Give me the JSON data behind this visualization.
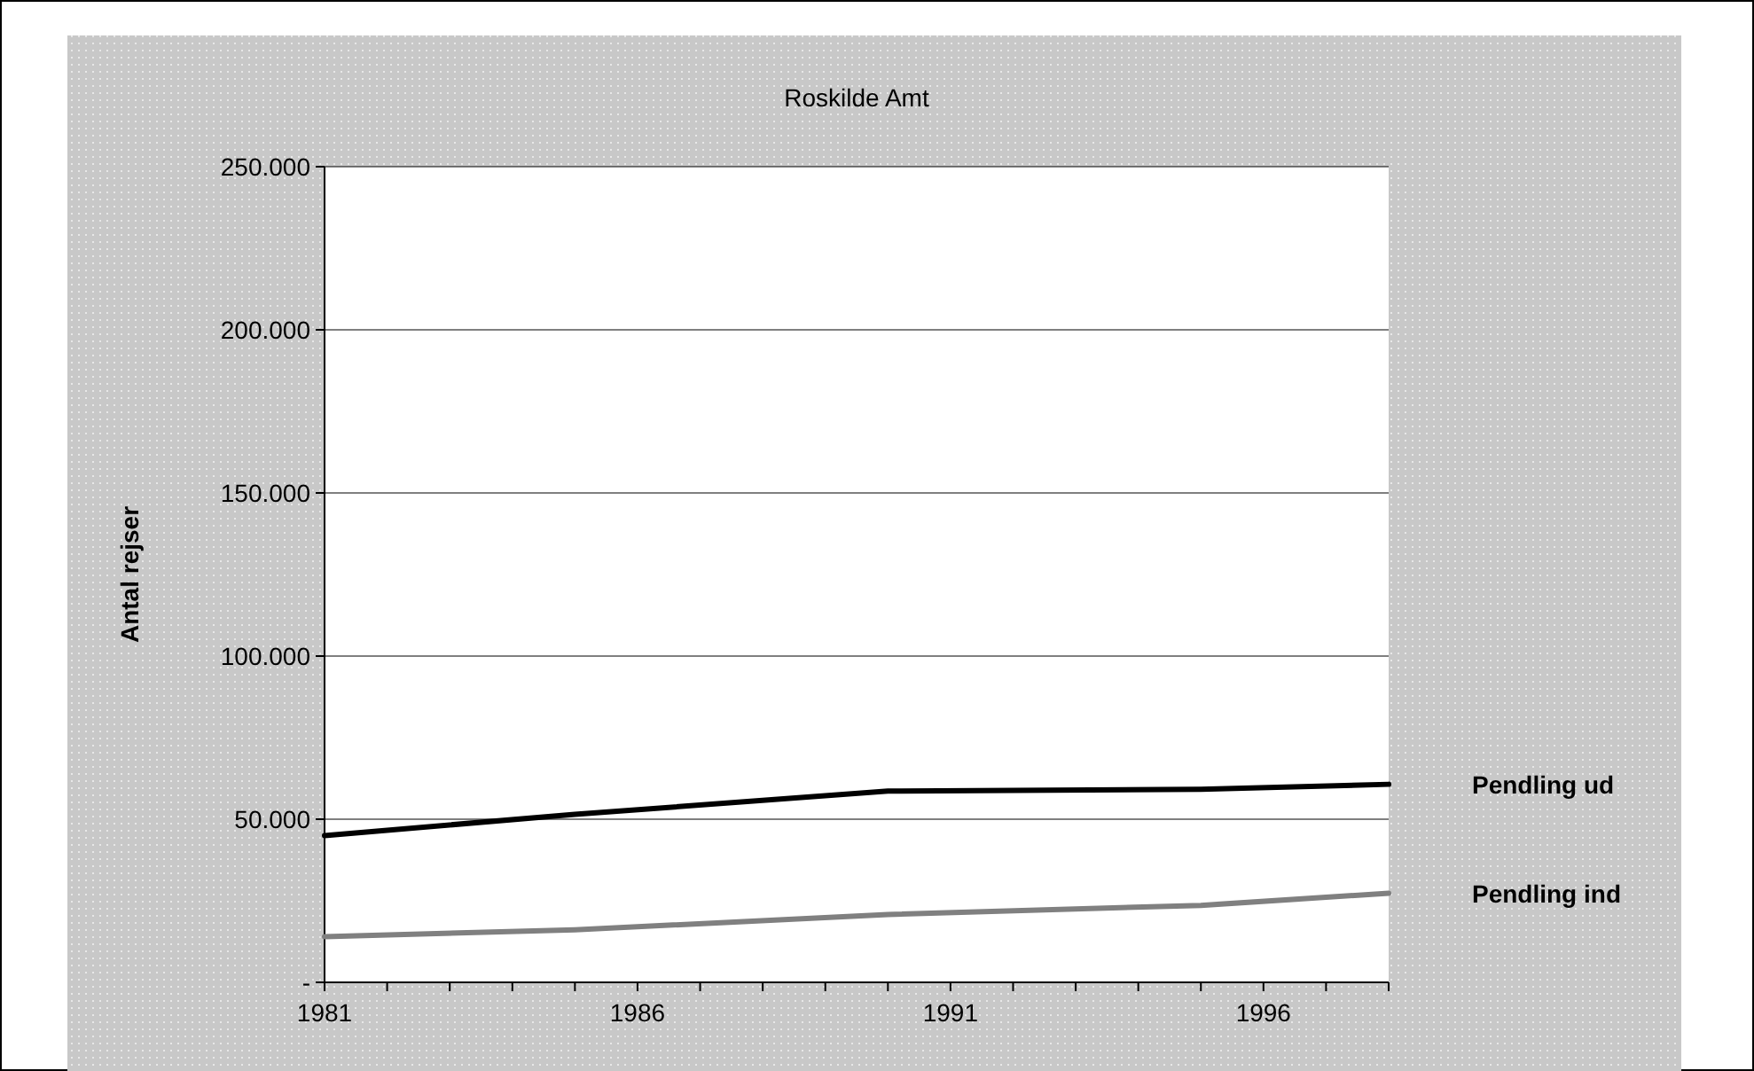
{
  "chart_data": {
    "type": "line",
    "title": "Roskilde Amt",
    "ylabel": "Antal rejser",
    "xlim": [
      1981,
      1998
    ],
    "xticks": [
      1981,
      1986,
      1991,
      1996
    ],
    "ylim": [
      0,
      250000
    ],
    "yticks": [
      {
        "value": 0,
        "label": "-"
      },
      {
        "value": 50000,
        "label": "50.000"
      },
      {
        "value": 100000,
        "label": "100.000"
      },
      {
        "value": 150000,
        "label": "150.000"
      },
      {
        "value": 200000,
        "label": "200.000"
      },
      {
        "value": 250000,
        "label": "250.000"
      }
    ],
    "grid": "y",
    "legend": false,
    "marker": "none",
    "line_style": "solid",
    "series": [
      {
        "name": "Pendling ud",
        "color": "#000000",
        "x": [
          1981,
          1985,
          1990,
          1995,
          1998
        ],
        "values": [
          45000,
          51500,
          58600,
          59200,
          60700
        ]
      },
      {
        "name": "Pendling ind",
        "color": "#808080",
        "x": [
          1981,
          1985,
          1990,
          1995,
          1998
        ],
        "values": [
          14000,
          16100,
          20800,
          23600,
          27300
        ]
      }
    ]
  }
}
